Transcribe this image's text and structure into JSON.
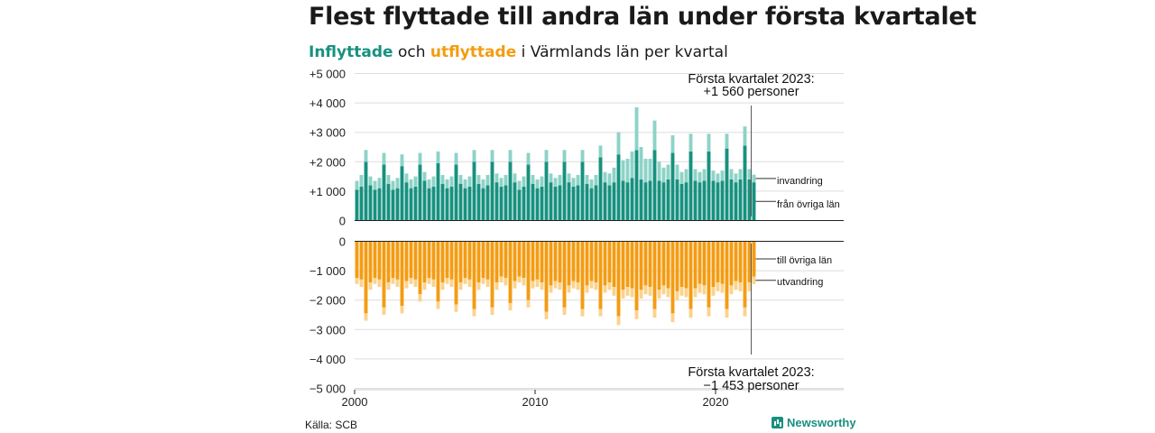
{
  "title": "Flest flyttade till andra län under första kvartalet",
  "subtitle": {
    "part1": "Inflyttade",
    "part2": " och ",
    "part3": "utflyttade",
    "part4": " i Värmlands län per kvartal"
  },
  "source": "Källa: SCB",
  "brand": "Newsworthy",
  "colors": {
    "in_dark": "#17917f",
    "in_light": "#8dd3c7",
    "out_dark": "#f39c12",
    "out_light": "#fbd38d",
    "grid": "#dddddd",
    "axis": "#222222"
  },
  "chart_data": {
    "type": "bar",
    "stacked": true,
    "start_year": 2000,
    "frequency": "quarterly",
    "x_ticks": [
      "2000",
      "2010",
      "2020"
    ],
    "y_ticks": [
      "+5 000",
      "+4 000",
      "+3 000",
      "+2 000",
      "+1 000",
      "0"
    ],
    "y2_ticks": [
      "0",
      "−1 000",
      "−2 000",
      "−3 000",
      "−4 000",
      "−5 000"
    ],
    "ylim_in": [
      0,
      5000
    ],
    "ylim_out": [
      -5000,
      0
    ],
    "series": [
      {
        "name": "från övriga län",
        "values": [
          1050,
          1150,
          2000,
          1200,
          1050,
          1100,
          1900,
          1250,
          1050,
          1100,
          1850,
          1300,
          1100,
          1150,
          1900,
          1350,
          1100,
          1150,
          1950,
          1250,
          1100,
          1150,
          1900,
          1250,
          1100,
          1150,
          2000,
          1250,
          1100,
          1200,
          2000,
          1300,
          1150,
          1200,
          2000,
          1300,
          1050,
          1150,
          1900,
          1250,
          1100,
          1150,
          2000,
          1300,
          1150,
          1200,
          2000,
          1300,
          1150,
          1200,
          2000,
          1250,
          1100,
          1200,
          2150,
          1300,
          1200,
          1300,
          2250,
          1350,
          1300,
          1450,
          2400,
          1400,
          1300,
          1350,
          2400,
          1350,
          1300,
          1400,
          2300,
          1400,
          1250,
          1300,
          2350,
          1350,
          1300,
          1350,
          2350,
          1350,
          1300,
          1350,
          2450,
          1400,
          1300,
          1400,
          2550,
          1400,
          1300
        ]
      },
      {
        "name": "invandring",
        "values": [
          300,
          400,
          400,
          300,
          300,
          350,
          400,
          300,
          300,
          350,
          400,
          300,
          300,
          350,
          400,
          300,
          300,
          350,
          400,
          300,
          300,
          350,
          400,
          300,
          300,
          350,
          400,
          300,
          300,
          350,
          400,
          300,
          300,
          350,
          400,
          300,
          300,
          350,
          400,
          300,
          300,
          350,
          400,
          300,
          300,
          350,
          400,
          300,
          300,
          350,
          400,
          300,
          300,
          350,
          400,
          350,
          400,
          500,
          750,
          700,
          800,
          900,
          1450,
          1100,
          800,
          750,
          1000,
          650,
          500,
          500,
          600,
          500,
          400,
          450,
          600,
          400,
          350,
          400,
          600,
          350,
          300,
          350,
          500,
          350,
          300,
          350,
          650,
          350,
          260
        ]
      },
      {
        "name": "till övriga län",
        "values": [
          -1250,
          -1300,
          -2450,
          -1400,
          -1250,
          -1300,
          -2250,
          -1400,
          -1250,
          -1300,
          -2200,
          -1350,
          -1250,
          -1300,
          -1800,
          -1400,
          -1250,
          -1300,
          -2050,
          -1400,
          -1250,
          -1300,
          -2150,
          -1400,
          -1250,
          -1300,
          -2300,
          -1400,
          -1250,
          -1300,
          -2250,
          -1400,
          -1200,
          -1250,
          -2100,
          -1350,
          -1200,
          -1250,
          -2000,
          -1350,
          -1300,
          -1400,
          -2400,
          -1500,
          -1350,
          -1400,
          -2250,
          -1500,
          -1350,
          -1400,
          -2300,
          -1500,
          -1350,
          -1400,
          -2300,
          -1500,
          -1400,
          -1550,
          -2550,
          -1650,
          -1550,
          -1600,
          -2350,
          -1650,
          -1500,
          -1550,
          -2300,
          -1650,
          -1500,
          -1600,
          -2450,
          -1700,
          -1550,
          -1600,
          -2300,
          -1600,
          -1450,
          -1500,
          -2250,
          -1550,
          -1400,
          -1450,
          -2300,
          -1500,
          -1350,
          -1400,
          -2250,
          -1400,
          -1200
        ]
      },
      {
        "name": "utvandring",
        "values": [
          -200,
          -250,
          -250,
          -250,
          -200,
          -250,
          -250,
          -250,
          -200,
          -250,
          -250,
          -250,
          -200,
          -250,
          -250,
          -250,
          -200,
          -250,
          -250,
          -250,
          -200,
          -250,
          -250,
          -250,
          -200,
          -250,
          -250,
          -250,
          -200,
          -250,
          -250,
          -250,
          -200,
          -250,
          -250,
          -250,
          -200,
          -250,
          -250,
          -250,
          -250,
          -250,
          -250,
          -250,
          -250,
          -250,
          -250,
          -250,
          -250,
          -250,
          -250,
          -250,
          -250,
          -250,
          -250,
          -250,
          -250,
          -300,
          -300,
          -300,
          -300,
          -300,
          -300,
          -300,
          -300,
          -300,
          -300,
          -300,
          -300,
          -300,
          -300,
          -300,
          -300,
          -300,
          -300,
          -300,
          -300,
          -300,
          -300,
          -300,
          -300,
          -300,
          -300,
          -300,
          -300,
          -300,
          -300,
          -300,
          -253
        ]
      }
    ],
    "annotations": {
      "top_line1": "Första kvartalet 2023:",
      "top_line2": "+1 560 personer",
      "bottom_line1": "Första kvartalet 2023:",
      "bottom_line2": "−1 453 personer"
    },
    "series_labels": {
      "invandring": "invandring",
      "fran": "från övriga län",
      "till": "till övriga län",
      "utvandring": "utvandring"
    }
  }
}
